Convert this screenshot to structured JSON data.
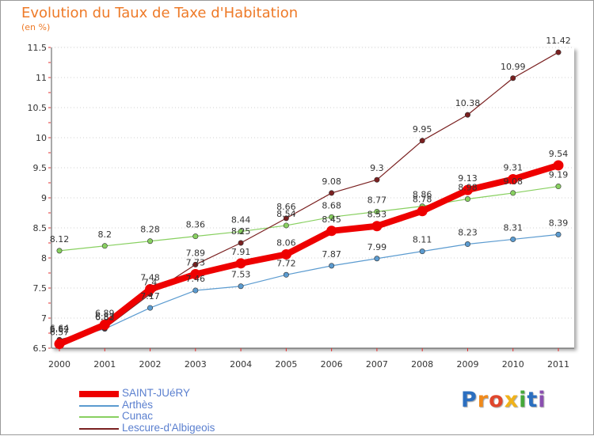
{
  "title": "Evolution du Taux de Taxe d'Habitation",
  "unit": "(en %)",
  "logo": {
    "text": "Proxiti",
    "letters": [
      "P",
      "r",
      "o",
      "x",
      "i",
      "t",
      "i"
    ],
    "colors": [
      "#2b6fc0",
      "#f08a1c",
      "#e0462c",
      "#f0b21a",
      "#45a83a",
      "#2b6fc0",
      "#8a4fb0"
    ]
  },
  "chart_data": {
    "type": "line",
    "title": "Evolution du Taux de Taxe d'Habitation",
    "ylabel": "(en %)",
    "xlabel": "",
    "x": [
      "2000",
      "2001",
      "2002",
      "2003",
      "2004",
      "2005",
      "2006",
      "2007",
      "2008",
      "2009",
      "2010",
      "2011"
    ],
    "ylim": [
      6.5,
      11.5
    ],
    "yticks": [
      "6.5",
      "7",
      "7.5",
      "8",
      "8.5",
      "9",
      "9.5",
      "10",
      "10.5",
      "11",
      "11.5"
    ],
    "grid": true,
    "legend_position": "bottom-left",
    "series": [
      {
        "name": "SAINT-JUéRY",
        "color": "#ee0000",
        "emphasis": true,
        "values": [
          6.57,
          6.89,
          7.48,
          7.73,
          7.91,
          8.06,
          8.45,
          8.53,
          8.78,
          9.13,
          9.31,
          9.54
        ],
        "labels": [
          "6.57",
          "6.89",
          "7.48",
          "7.73",
          "7.91",
          "8.06",
          "8.45",
          "8.53",
          "8.78",
          "9.13",
          "9.31",
          "9.54"
        ]
      },
      {
        "name": "Arthès",
        "color": "#5b9bd0",
        "emphasis": false,
        "values": [
          6.62,
          6.82,
          7.17,
          7.46,
          7.53,
          7.72,
          7.87,
          7.99,
          8.11,
          8.23,
          8.31,
          8.39
        ],
        "labels": [
          "6.62",
          "6.82",
          "7.17",
          "7.46",
          "7.53",
          "7.72",
          "7.87",
          "7.99",
          "8.11",
          "8.23",
          "8.31",
          "8.39"
        ]
      },
      {
        "name": "Cunac",
        "color": "#88d060",
        "emphasis": false,
        "values": [
          8.12,
          8.2,
          8.28,
          8.36,
          8.44,
          8.54,
          8.68,
          8.77,
          8.86,
          8.98,
          9.08,
          9.19
        ],
        "labels": [
          "8.12",
          "8.2",
          "8.28",
          "8.36",
          "8.44",
          "8.54",
          "8.68",
          "8.77",
          "8.86",
          "8.98",
          "9.08",
          "9.19"
        ]
      },
      {
        "name": "Lescure-d'Albigeois",
        "color": "#7a2020",
        "emphasis": false,
        "values": [
          6.64,
          6.83,
          7.4,
          7.89,
          8.25,
          8.66,
          9.08,
          9.3,
          9.95,
          10.38,
          10.99,
          11.42
        ],
        "labels": [
          "6.64",
          "6.83",
          "7.4",
          "7.89",
          "8.25",
          "8.66",
          "9.08",
          "9.3",
          "9.95",
          "10.38",
          "10.99",
          "11.42"
        ]
      }
    ]
  }
}
